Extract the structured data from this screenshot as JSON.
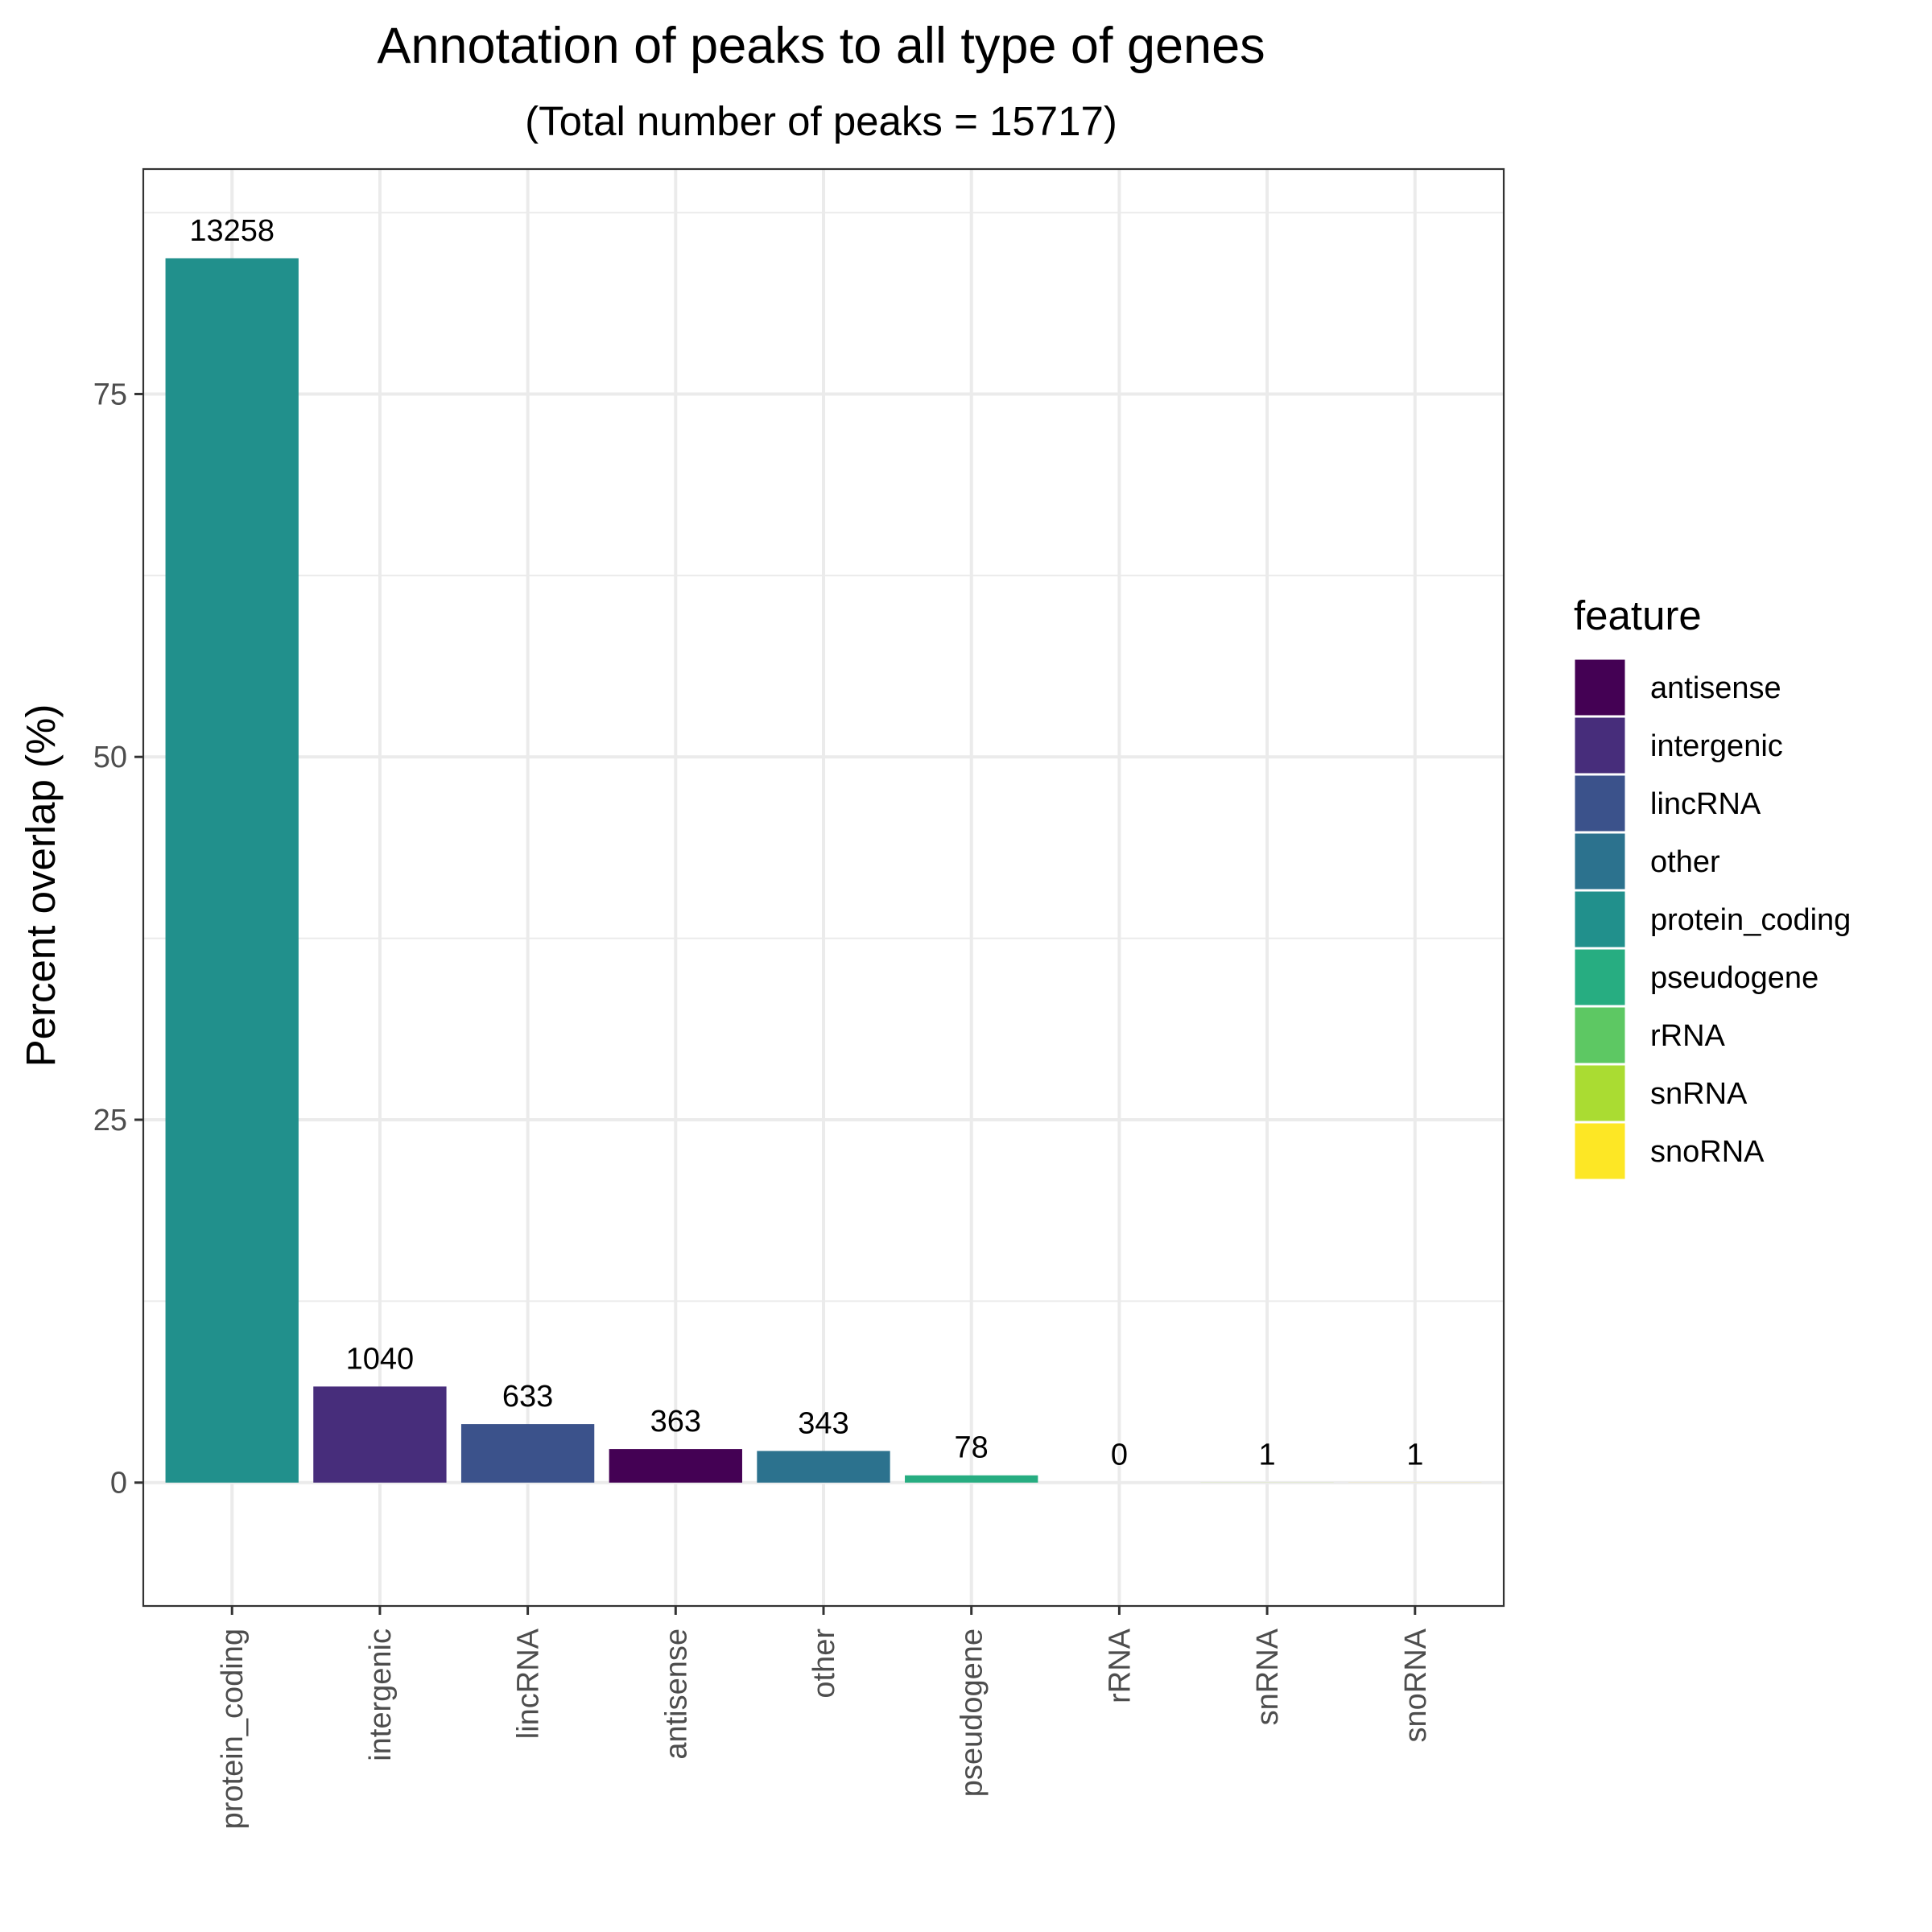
{
  "chart_data": {
    "type": "bar",
    "title": "Annotation of peaks to all type of genes",
    "subtitle": "(Total number of peaks = 15717)",
    "xlabel": "",
    "ylabel": "Percent overlap (%)",
    "ylim": [
      -8.5,
      90.5
    ],
    "yticks": [
      0,
      25,
      50,
      75
    ],
    "ytick_labels": [
      "0",
      "25",
      "50",
      "75"
    ],
    "grid": true,
    "categories": [
      "protein_coding",
      "intergenic",
      "lincRNA",
      "antisense",
      "other",
      "pseudogene",
      "rRNA",
      "snRNA",
      "snoRNA"
    ],
    "values": [
      84.35,
      6.62,
      4.03,
      2.31,
      2.18,
      0.5,
      0,
      0.006,
      0.006
    ],
    "bar_labels": [
      "13258",
      "1040",
      "633",
      "363",
      "343",
      "78",
      "0",
      "1",
      "1"
    ],
    "colors": {
      "antisense": "#440154",
      "intergenic": "#472D7B",
      "lincRNA": "#3B528B",
      "other": "#2C728E",
      "protein_coding": "#21908C",
      "pseudogene": "#27AD81",
      "rRNA": "#5DC863",
      "snRNA": "#AADC32",
      "snoRNA": "#FDE725"
    },
    "legend": {
      "title": "feature",
      "position": "right",
      "entries": [
        "antisense",
        "intergenic",
        "lincRNA",
        "other",
        "protein_coding",
        "pseudogene",
        "rRNA",
        "snRNA",
        "snoRNA"
      ]
    }
  }
}
